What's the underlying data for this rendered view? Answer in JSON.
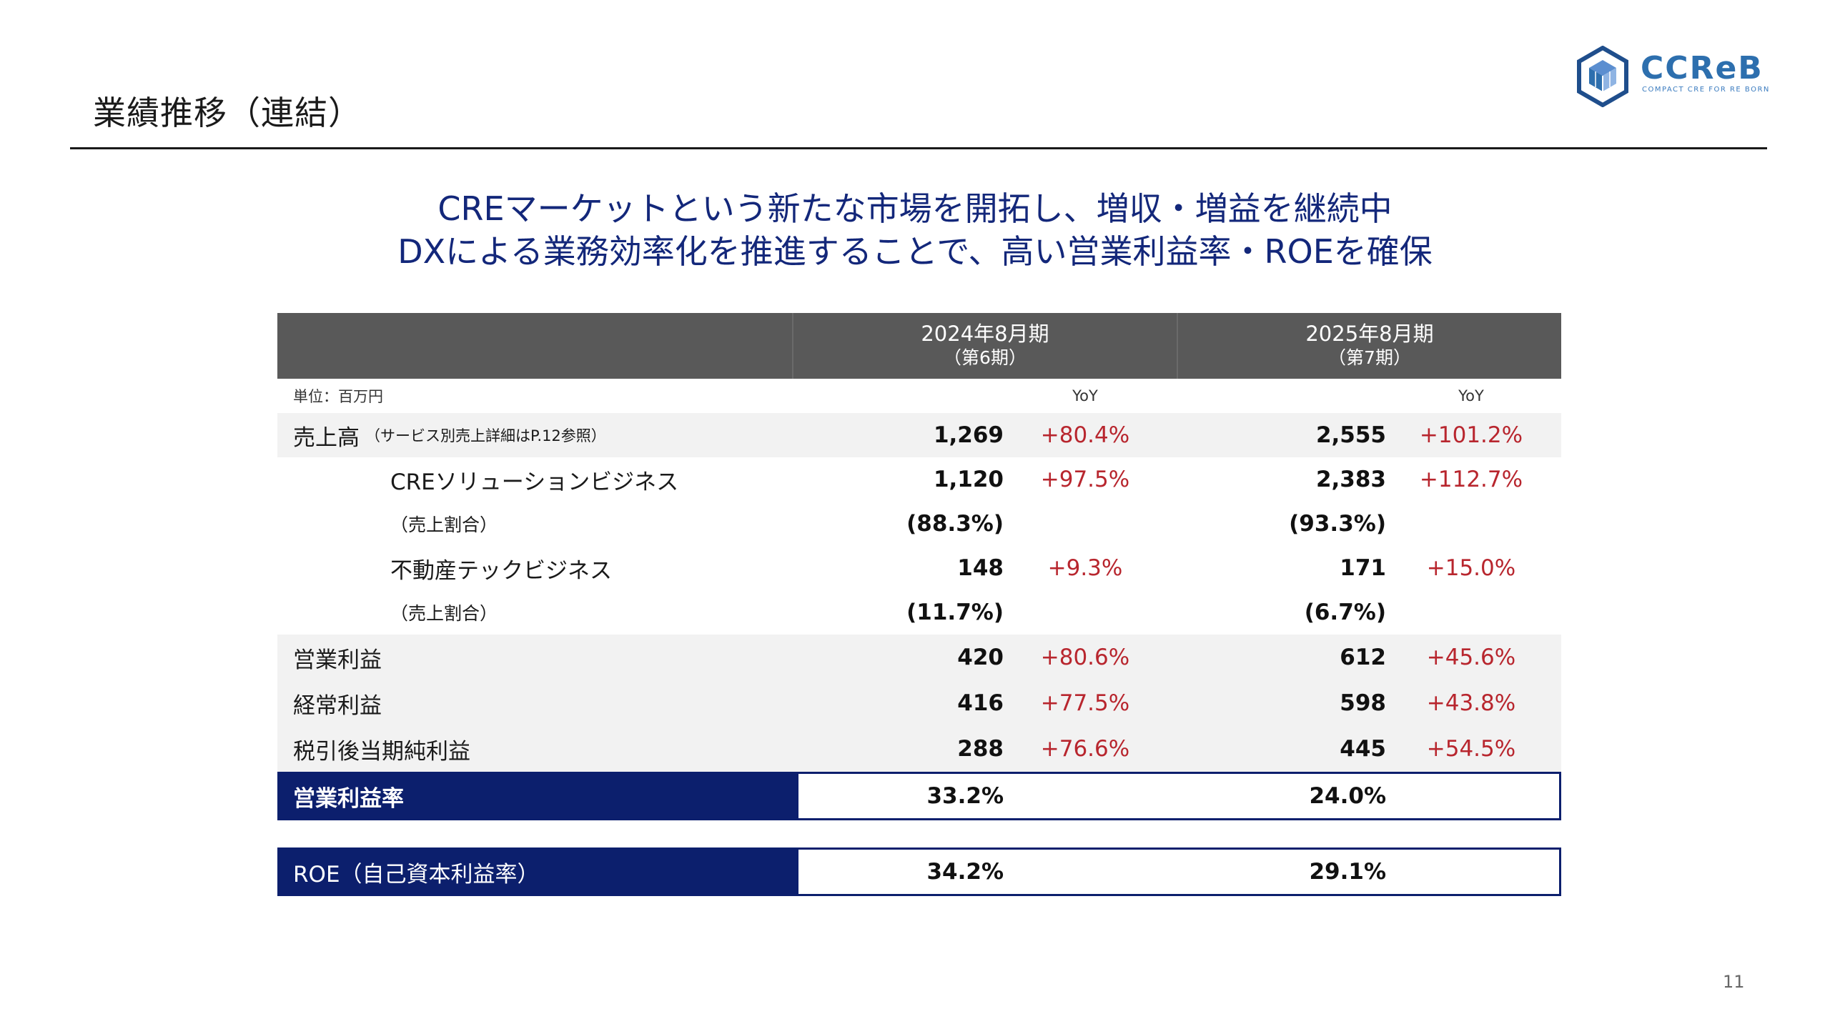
{
  "header": {
    "title": "業績推移（連結）"
  },
  "logo": {
    "text": "CCReB",
    "subtext": "COMPACT CRE FOR RE BORN",
    "color": "#2d6fae"
  },
  "headline": {
    "line1": "CREマーケットという新たな市場を開拓し、増収・増益を継続中",
    "line2": "DXによる業務効率化を推進することで、高い営業利益率・ROEを確保"
  },
  "table": {
    "unit": "単位：百万円",
    "yoy_label": "YoY",
    "periods": [
      {
        "label": "2024年8月期",
        "sub": "（第6期）"
      },
      {
        "label": "2025年8月期",
        "sub": "（第7期）"
      }
    ],
    "rows": [
      {
        "label": "売上高",
        "note": "（サービス別売上詳細はP.12参照）",
        "v1": "1,269",
        "y1": "+80.4%",
        "v2": "2,555",
        "y2": "+101.2%"
      },
      {
        "label": "CREソリューションビジネス",
        "v1": "1,120",
        "y1": "+97.5%",
        "v2": "2,383",
        "y2": "+112.7%"
      },
      {
        "label": "（売上割合）",
        "v1": "(88.3%)",
        "v2": "(93.3%)"
      },
      {
        "label": "不動産テックビジネス",
        "v1": "148",
        "y1": "+9.3%",
        "v2": "171",
        "y2": "+15.0%"
      },
      {
        "label": "（売上割合）",
        "v1": "(11.7%)",
        "v2": "(6.7%)"
      },
      {
        "label": "営業利益",
        "v1": "420",
        "y1": "+80.6%",
        "v2": "612",
        "y2": "+45.6%"
      },
      {
        "label": "経常利益",
        "v1": "416",
        "y1": "+77.5%",
        "v2": "598",
        "y2": "+43.8%"
      },
      {
        "label": "税引後当期純利益",
        "v1": "288",
        "y1": "+76.6%",
        "v2": "445",
        "y2": "+54.5%"
      }
    ],
    "operating_margin": {
      "label": "営業利益率",
      "v1": "33.2%",
      "v2": "24.0%"
    },
    "roe": {
      "label": "ROE（自己資本利益率）",
      "v1": "34.2%",
      "v2": "29.1%"
    }
  },
  "colors": {
    "navy": "#0c1f6d",
    "headline": "#13277a",
    "yoy_red": "#b8262e",
    "header_gray": "#595959"
  },
  "page_number": "11"
}
